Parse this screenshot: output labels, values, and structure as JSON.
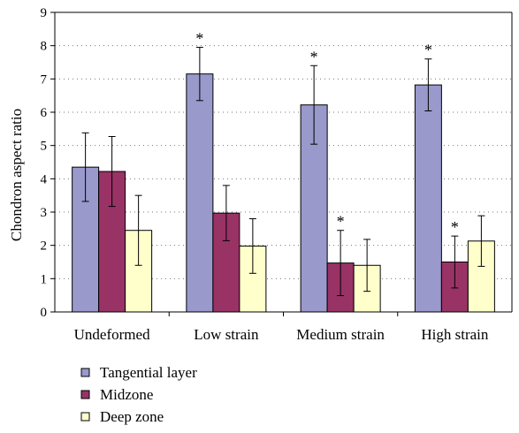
{
  "chart_data": {
    "type": "bar",
    "title": "",
    "xlabel": "",
    "ylabel": "Chondron aspect ratio",
    "ylim": [
      0,
      9
    ],
    "yticks": [
      0,
      1,
      2,
      3,
      4,
      5,
      6,
      7,
      8,
      9
    ],
    "grid": "horizontal dotted",
    "legend_position": "bottom-left",
    "categories": [
      "Undeformed",
      "Low strain",
      "Medium strain",
      "High strain"
    ],
    "significance_marker": "*",
    "series": [
      {
        "name": "Tangential layer",
        "color": "#9999cc",
        "values": [
          4.35,
          7.15,
          6.22,
          6.82
        ],
        "error": [
          1.03,
          0.8,
          1.18,
          0.78
        ],
        "significant": [
          false,
          true,
          true,
          true
        ]
      },
      {
        "name": "Midzone",
        "color": "#993366",
        "values": [
          4.22,
          2.97,
          1.47,
          1.5
        ],
        "error": [
          1.05,
          0.83,
          0.98,
          0.78
        ],
        "significant": [
          false,
          false,
          true,
          true
        ]
      },
      {
        "name": "Deep zone",
        "color": "#ffffcc",
        "values": [
          2.45,
          1.98,
          1.4,
          2.13
        ],
        "error": [
          1.05,
          0.82,
          0.78,
          0.76
        ],
        "significant": [
          false,
          false,
          false,
          false
        ]
      }
    ]
  }
}
